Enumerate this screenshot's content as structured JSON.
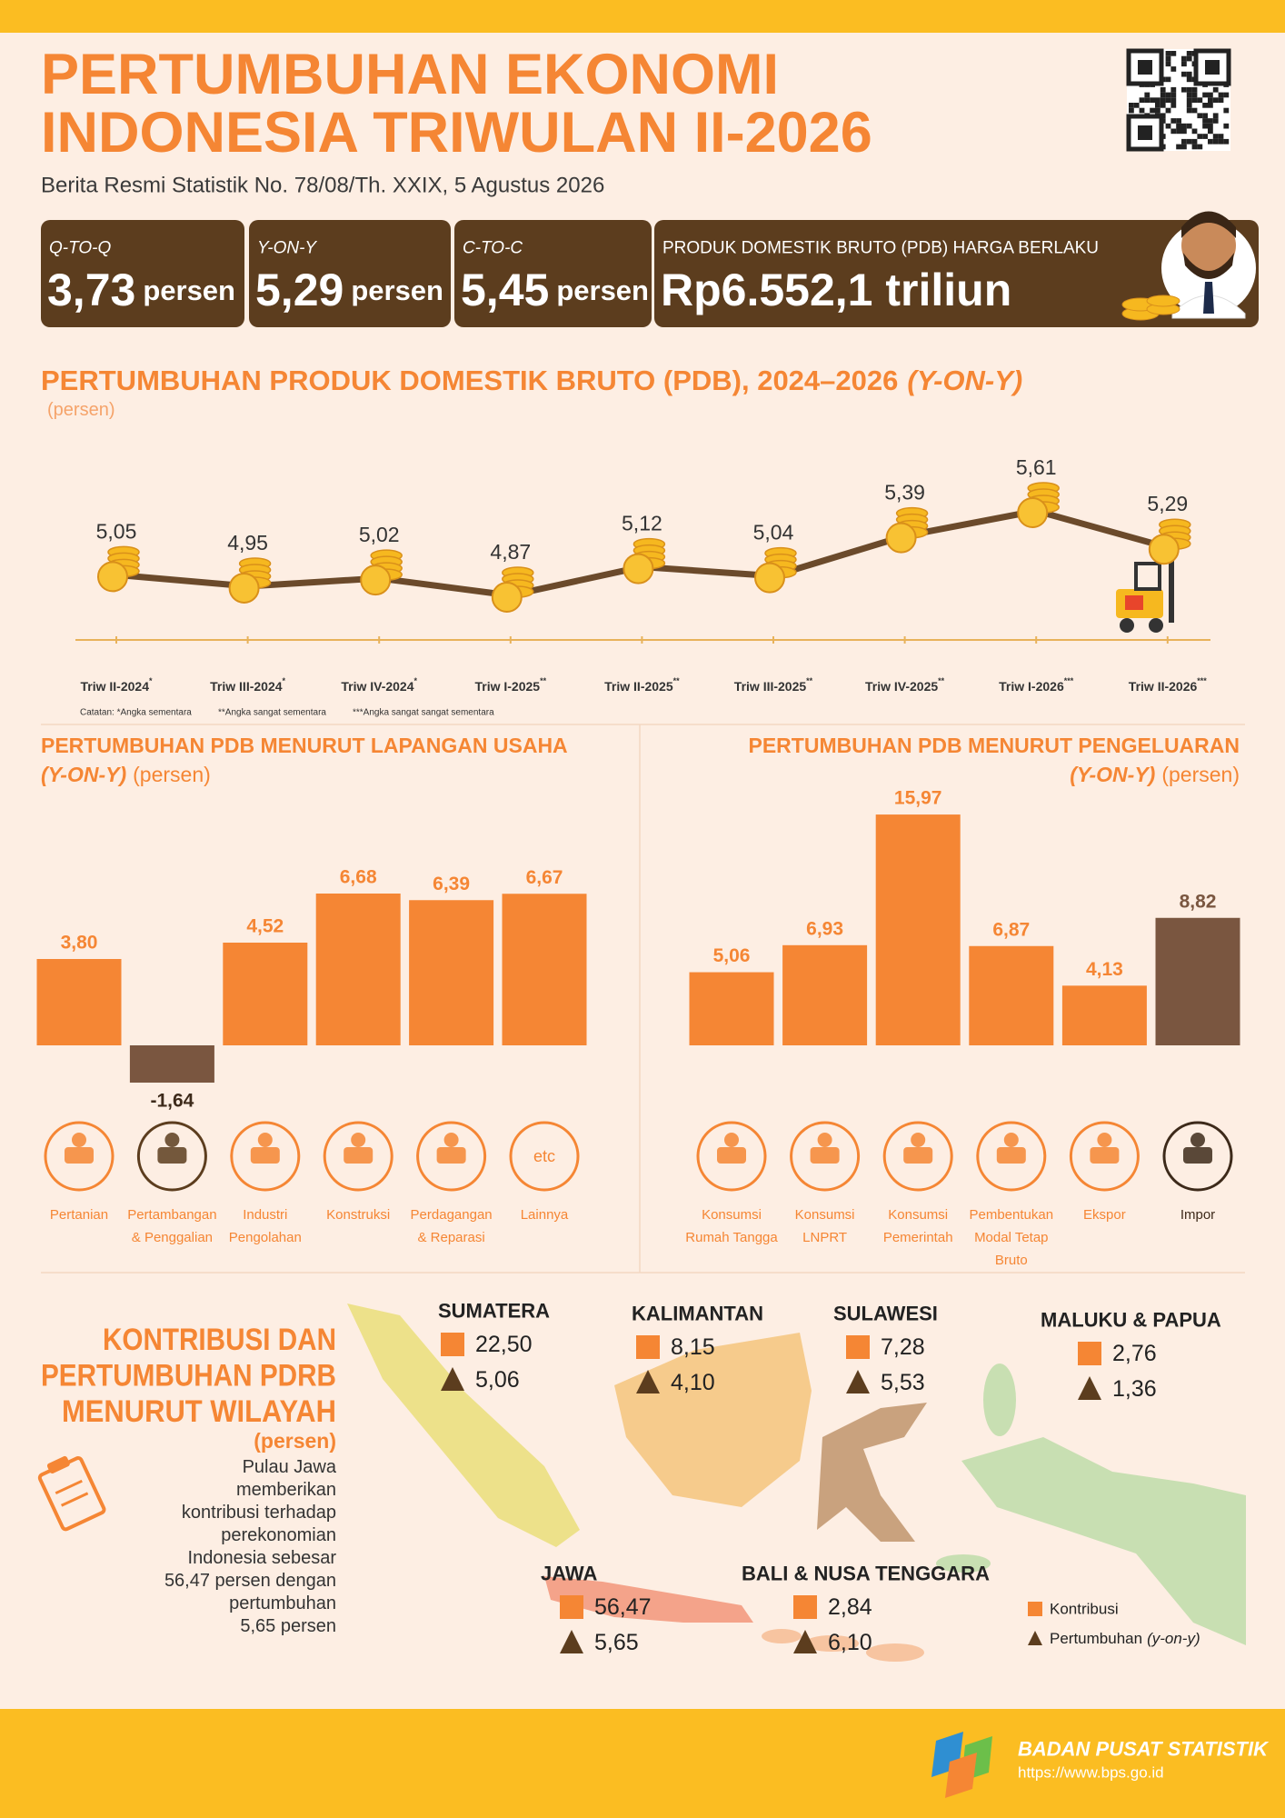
{
  "header": {
    "title": [
      "PERTUMBUHAN EKONOMI",
      "INDONESIA TRIWULAN II-2026"
    ],
    "subtitle": "Berita Resmi Statistik No. 78/08/Th. XXIX, 5 Agustus 2026"
  },
  "highlights": [
    {
      "label": "Q-TO-Q",
      "value": "3,73",
      "unit": "persen"
    },
    {
      "label": "Y-ON-Y",
      "value": "5,29",
      "unit": "persen"
    },
    {
      "label": "C-TO-C",
      "value": "5,45",
      "unit": "persen"
    },
    {
      "label": "PRODUK DOMESTIK BRUTO (PDB) HARGA BERLAKU",
      "value": "Rp6.552,1 triliun"
    }
  ],
  "chart_data": [
    {
      "type": "line",
      "title": "PERTUMBUHAN PRODUK DOMESTIK BRUTO (PDB), 2024–2026",
      "title_emphasis": "(Y-ON-Y)",
      "unit": "(persen)",
      "categories": [
        "Triw II-2024",
        "Triw III-2024",
        "Triw IV-2024",
        "Triw I-2025",
        "Triw II-2025",
        "Triw III-2025",
        "Triw IV-2025",
        "Triw I-2026",
        "Triw II-2026"
      ],
      "category_notes": [
        "*",
        "*",
        "*",
        "**",
        "**",
        "**",
        "**",
        "***",
        "***"
      ],
      "values": [
        5.05,
        4.95,
        5.02,
        4.87,
        5.12,
        5.04,
        5.39,
        5.61,
        5.29
      ],
      "value_labels": [
        "5,05",
        "4,95",
        "5,02",
        "4,87",
        "5,12",
        "5,04",
        "5,39",
        "5,61",
        "5,29"
      ],
      "color": "#6b4a2b",
      "notes": [
        "Catatan: *Angka sementara",
        "**Angka sangat sementara",
        "***Angka sangat sangat sementara"
      ]
    },
    {
      "type": "bar",
      "title": "PERTUMBUHAN PDB MENURUT LAPANGAN USAHA",
      "title_emphasis": "(Y-ON-Y)",
      "unit": "(persen)",
      "categories": [
        "Pertanian",
        "Pertambangan & Penggalian",
        "Industri Pengolahan",
        "Konstruksi",
        "Perdagangan & Reparasi",
        "Lainnya"
      ],
      "values": [
        3.8,
        -1.64,
        4.52,
        6.68,
        6.39,
        6.67
      ],
      "value_labels": [
        "3,80",
        "-1,64",
        "4,52",
        "6,68",
        "6,39",
        "6,67"
      ],
      "colors": [
        "#f58634",
        "#7a5640",
        "#f58634",
        "#f58634",
        "#f58634",
        "#f58634"
      ],
      "icon_text": "etc"
    },
    {
      "type": "bar",
      "title": "PERTUMBUHAN PDB MENURUT PENGELUARAN",
      "title_emphasis": "(Y-ON-Y)",
      "unit": "(persen)",
      "categories": [
        "Konsumsi Rumah Tangga",
        "Konsumsi LNPRT",
        "Konsumsi Pemerintah",
        "Pembentukan Modal Tetap Bruto",
        "Ekspor",
        "Impor"
      ],
      "values": [
        5.06,
        6.93,
        15.97,
        6.87,
        4.13,
        8.82
      ],
      "value_labels": [
        "5,06",
        "6,93",
        "15,97",
        "6,87",
        "4,13",
        "8,82"
      ],
      "colors": [
        "#f58634",
        "#f58634",
        "#f58634",
        "#f58634",
        "#f58634",
        "#7a5640"
      ]
    }
  ],
  "regions": {
    "title": [
      "KONTRIBUSI DAN",
      "PERTUMBUHAN PDRB",
      "MENURUT WILAYAH"
    ],
    "unit": "(persen)",
    "description": [
      "Pulau Jawa",
      "memberikan",
      "kontribusi terhadap",
      "perekonomian",
      "Indonesia sebesar",
      "56,47 persen dengan",
      "pertumbuhan",
      "5,65 persen"
    ],
    "items": [
      {
        "name": "SUMATERA",
        "contribution": "22,50",
        "growth": "5,06"
      },
      {
        "name": "KALIMANTAN",
        "contribution": "8,15",
        "growth": "4,10"
      },
      {
        "name": "SULAWESI",
        "contribution": "7,28",
        "growth": "5,53"
      },
      {
        "name": "MALUKU & PAPUA",
        "contribution": "2,76",
        "growth": "1,36"
      },
      {
        "name": "JAWA",
        "contribution": "56,47",
        "growth": "5,65"
      },
      {
        "name": "BALI & NUSA TENGGARA",
        "contribution": "2,84",
        "growth": "6,10"
      }
    ],
    "legend": {
      "contribution": "Kontribusi",
      "growth": "Pertumbuhan",
      "growth_emphasis": "(y-on-y)"
    }
  },
  "footer": {
    "name": "BADAN PUSAT STATISTIK",
    "url": "https://www.bps.go.id"
  }
}
